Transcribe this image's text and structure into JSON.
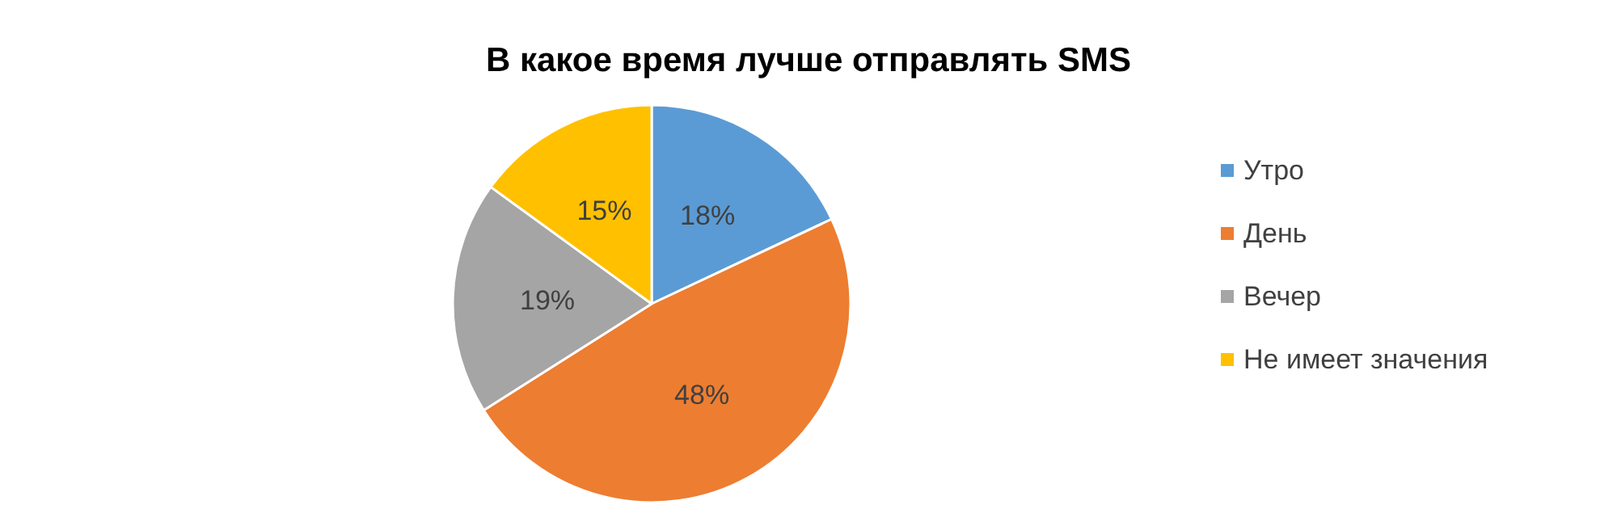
{
  "chart_data": {
    "type": "pie",
    "title": "В какое время лучше отправлять SMS",
    "categories": [
      "Утро",
      "День",
      "Вечер",
      "Не имеет значения"
    ],
    "values": [
      18,
      48,
      19,
      15
    ],
    "value_labels": [
      "18%",
      "48%",
      "19%",
      "15%"
    ],
    "colors": [
      "#5b9bd5",
      "#ed7d31",
      "#a5a5a5",
      "#ffc000"
    ],
    "legend": "right"
  }
}
